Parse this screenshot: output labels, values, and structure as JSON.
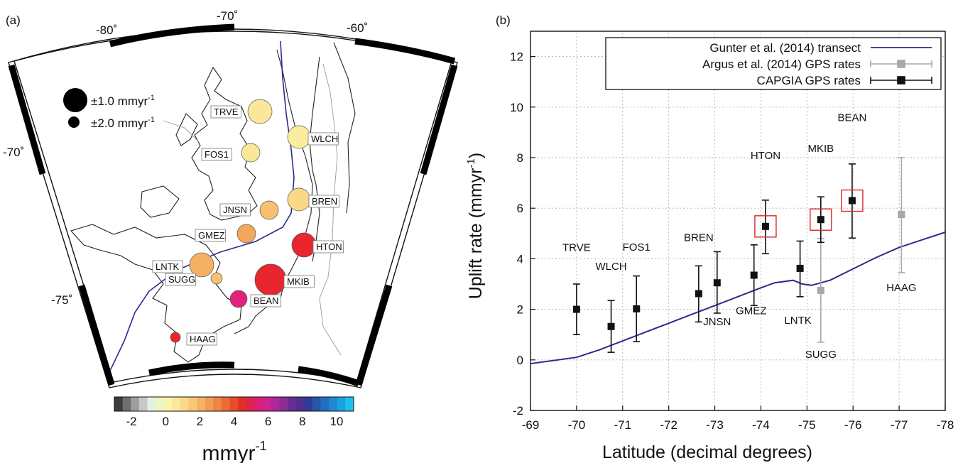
{
  "panel_a": {
    "label": "(a)",
    "lon_labels": [
      "-80˚",
      "-70˚",
      "-60˚"
    ],
    "lat_labels": [
      "-70˚",
      "-75˚"
    ],
    "size_legend": [
      "±1.0 mmyr",
      "±2.0 mmyr"
    ],
    "size_legend_sup": "-1",
    "stations": [
      {
        "name": "TRVE",
        "color": "#fbe79a"
      },
      {
        "name": "WLCH",
        "color": "#fbeda0"
      },
      {
        "name": "FOS1",
        "color": "#fbe79a"
      },
      {
        "name": "JNSN",
        "color": "#f7c170"
      },
      {
        "name": "BREN",
        "color": "#f9d888"
      },
      {
        "name": "GMEZ",
        "color": "#f4a75a"
      },
      {
        "name": "HTON",
        "color": "#e8262e"
      },
      {
        "name": "LNTK",
        "color": "#f5b062"
      },
      {
        "name": "SUGG",
        "color": "#f7c170"
      },
      {
        "name": "MKIB",
        "color": "#e8262e"
      },
      {
        "name": "BEAN",
        "color": "#e1227a"
      },
      {
        "name": "HAAG",
        "color": "#e8262e"
      }
    ],
    "colorbar": {
      "ticks": [
        "-2",
        "0",
        "2",
        "4",
        "6",
        "8",
        "10"
      ],
      "unit": "mmyr",
      "unit_sup": "-1",
      "colors": [
        "#3c3c3c",
        "#6e6e6e",
        "#9e9e9e",
        "#c8c8c8",
        "#e2f2e2",
        "#eef6c4",
        "#f8f5a8",
        "#fbe89a",
        "#fbd987",
        "#f9c676",
        "#f6b264",
        "#f39c52",
        "#f08442",
        "#ec6a36",
        "#e84c2c",
        "#e32c2c",
        "#e0224e",
        "#dc2074",
        "#cf2292",
        "#b0289a",
        "#8e2c96",
        "#6a2c92",
        "#4c3090",
        "#333a96",
        "#2658a8",
        "#2070be",
        "#1c88d2",
        "#1aa2e2",
        "#20c0ee"
      ]
    }
  },
  "chart_data": {
    "type": "scatter",
    "panel_label": "(b)",
    "xlabel": "Latitude (decimal degrees)",
    "ylabel": "Uplift rate (mmyr",
    "ylabel_sup": "-1",
    "ylabel_end": ")",
    "xlim": [
      -69,
      -78
    ],
    "ylim": [
      -2,
      13
    ],
    "xticks": [
      -69,
      -70,
      -71,
      -72,
      -73,
      -74,
      -75,
      -76,
      -77,
      -78
    ],
    "yticks": [
      -2,
      0,
      2,
      4,
      6,
      8,
      10,
      12
    ],
    "grid": true,
    "legend_position": "top-right",
    "series": [
      {
        "name": "Gunter et al. (2014) transect",
        "kind": "line",
        "color": "#2b2b8f",
        "x": [
          -69,
          -70,
          -70.5,
          -71,
          -71.5,
          -72,
          -72.5,
          -73,
          -73.5,
          -74,
          -74.3,
          -74.7,
          -74.9,
          -75.1,
          -75.5,
          -76,
          -76.5,
          -77,
          -77.5,
          -78
        ],
        "y": [
          -0.15,
          0.1,
          0.4,
          0.75,
          1.1,
          1.45,
          1.8,
          2.15,
          2.5,
          2.85,
          3.05,
          3.15,
          3.0,
          2.95,
          3.15,
          3.6,
          4.05,
          4.45,
          4.75,
          5.05
        ]
      },
      {
        "name": "Argus et al. (2014) GPS rates",
        "kind": "points",
        "color": "#a8a8a8",
        "points": [
          {
            "label": "SUGG",
            "x": -75.3,
            "y": 2.75,
            "lo": 0.7,
            "hi": 4.8
          },
          {
            "label": "HAAG",
            "x": -77.05,
            "y": 5.75,
            "lo": 3.45,
            "hi": 8.0
          }
        ]
      },
      {
        "name": "CAPGIA GPS rates",
        "kind": "points",
        "color": "#111111",
        "points": [
          {
            "label": "TRVE",
            "x": -70.0,
            "y": 2.0,
            "lo": 1.0,
            "hi": 3.0
          },
          {
            "label": "WLCH",
            "x": -70.75,
            "y": 1.32,
            "lo": 0.3,
            "hi": 2.35
          },
          {
            "label": "FOS1",
            "x": -71.3,
            "y": 2.02,
            "lo": 0.72,
            "hi": 3.32
          },
          {
            "label": "BREN",
            "x": -72.65,
            "y": 2.62,
            "lo": 1.5,
            "hi": 3.72
          },
          {
            "label": "JNSN",
            "x": -73.05,
            "y": 3.05,
            "lo": 1.85,
            "hi": 4.28
          },
          {
            "label": "GMEZ",
            "x": -73.85,
            "y": 3.35,
            "lo": 2.15,
            "hi": 4.55
          },
          {
            "label": "HTON",
            "x": -74.1,
            "y": 5.28,
            "lo": 4.2,
            "hi": 6.32
          },
          {
            "label": "LNTK",
            "x": -74.85,
            "y": 3.62,
            "lo": 2.5,
            "hi": 4.7
          },
          {
            "label": "MKIB",
            "x": -75.3,
            "y": 5.55,
            "lo": 4.65,
            "hi": 6.45
          },
          {
            "label": "BEAN",
            "x": -75.98,
            "y": 6.3,
            "lo": 4.82,
            "hi": 7.75
          }
        ]
      }
    ],
    "highlighted": [
      "HTON",
      "MKIB",
      "BEAN"
    ],
    "highlight_color": "#e02424"
  }
}
